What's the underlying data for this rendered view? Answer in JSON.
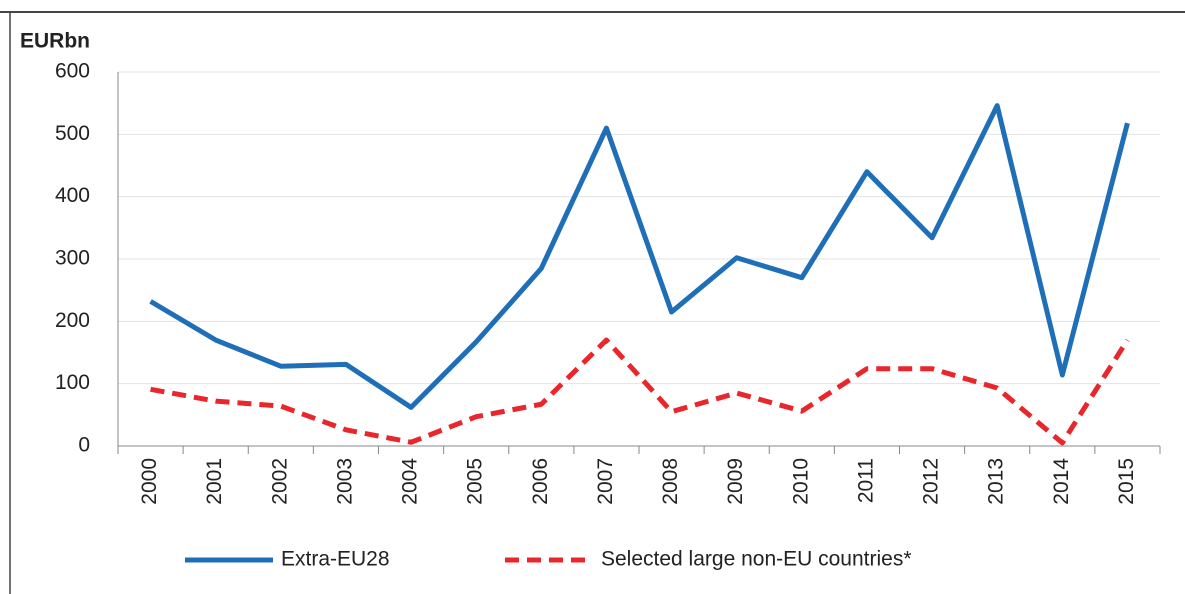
{
  "chart_data": {
    "type": "line",
    "y_label": "EURbn",
    "categories": [
      "2000",
      "2001",
      "2002",
      "2003",
      "2004",
      "2005",
      "2006",
      "2007",
      "2008",
      "2009",
      "2010",
      "2011",
      "2012",
      "2013",
      "2014",
      "2015"
    ],
    "series": [
      {
        "name": "Extra-EU28",
        "color": "#1f6fb8",
        "line_style": "solid",
        "values": [
          232,
          170,
          128,
          131,
          62,
          167,
          285,
          510,
          215,
          302,
          270,
          440,
          334,
          546,
          114,
          518
        ]
      },
      {
        "name": "Selected large non-EU countries*",
        "color": "#e8262b",
        "line_style": "dashed",
        "values": [
          91,
          72,
          64,
          26,
          6,
          47,
          67,
          170,
          55,
          85,
          56,
          124,
          124,
          93,
          5,
          170
        ]
      }
    ],
    "ylim": [
      0,
      600
    ],
    "yticks": [
      0,
      100,
      200,
      300,
      400,
      500,
      600
    ],
    "grid": true
  }
}
